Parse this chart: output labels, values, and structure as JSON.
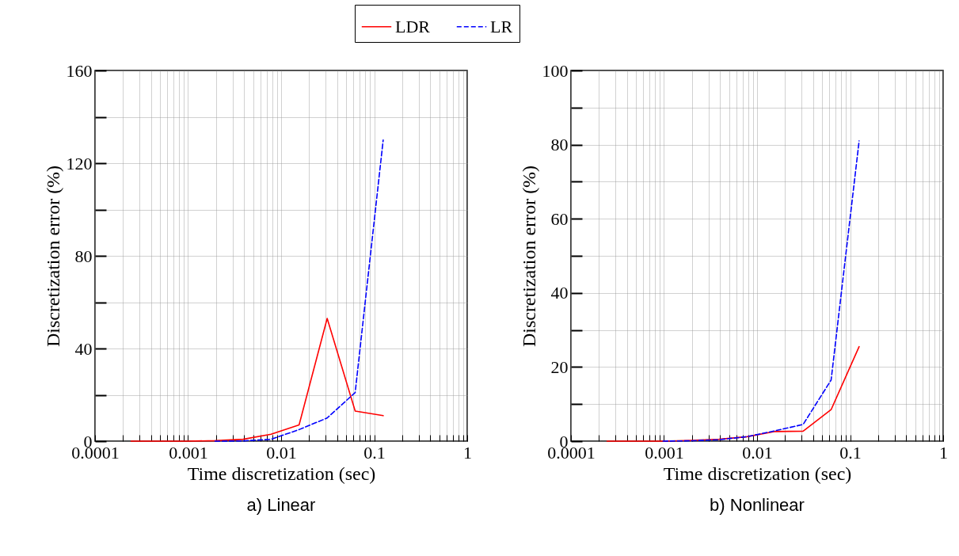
{
  "chart_data": [
    {
      "type": "line",
      "title": "a)  Linear",
      "xlabel": "Time discretization (sec)",
      "ylabel": "Discretization error (%)",
      "log": "x",
      "grid": true,
      "legend": "top",
      "xlim": [
        0.0001,
        1
      ],
      "xticks": [
        0.0001,
        {
          "value": 0.0002,
          "label": null
        },
        {
          "value": 0.0003,
          "label": null
        },
        {
          "value": 0.0004,
          "label": null
        },
        {
          "value": 0.0005,
          "label": null
        },
        {
          "value": 0.0006,
          "label": null
        },
        {
          "value": 0.0007,
          "label": null
        },
        {
          "value": 0.0008,
          "label": null
        },
        {
          "value": 0.0009,
          "label": null
        },
        0.001,
        {
          "value": 0.002,
          "label": null
        },
        {
          "value": 0.003,
          "label": null
        },
        {
          "value": 0.004,
          "label": null
        },
        {
          "value": 0.005,
          "label": null
        },
        {
          "value": 0.006,
          "label": null
        },
        {
          "value": 0.007,
          "label": null
        },
        {
          "value": 0.008,
          "label": null
        },
        {
          "value": 0.009,
          "label": null
        },
        0.01,
        {
          "value": 0.02,
          "label": null
        },
        {
          "value": 0.03,
          "label": null
        },
        {
          "value": 0.04,
          "label": null
        },
        {
          "value": 0.05,
          "label": null
        },
        {
          "value": 0.06,
          "label": null
        },
        {
          "value": 0.07,
          "label": null
        },
        {
          "value": 0.08,
          "label": null
        },
        {
          "value": 0.09,
          "label": null
        },
        0.1,
        {
          "value": 0.2,
          "label": null
        },
        {
          "value": 0.3,
          "label": null
        },
        {
          "value": 0.4,
          "label": null
        },
        {
          "value": 0.5,
          "label": null
        },
        {
          "value": 0.6,
          "label": null
        },
        {
          "value": 0.7,
          "label": null
        },
        {
          "value": 0.8,
          "label": null
        },
        {
          "value": 0.9,
          "label": null
        },
        1
      ],
      "ylim": [
        0,
        160
      ],
      "yticks": [
        0,
        {
          "value": 20,
          "label": null
        },
        40,
        {
          "value": 60,
          "label": null
        },
        80,
        {
          "value": 100,
          "label": null
        },
        120,
        {
          "value": 140,
          "label": null
        },
        160
      ],
      "x": [
        0.000244,
        0.000488,
        0.000977,
        0.00195,
        0.0039,
        0.0078,
        0.0156,
        0.03125,
        0.0625,
        0.125
      ],
      "series": [
        {
          "name": "LDR",
          "color": "#ff0000",
          "line_style": "solid",
          "values": [
            0,
            0,
            0,
            0.2,
            0.8,
            3,
            7,
            53,
            13,
            11
          ]
        },
        {
          "name": "LR",
          "color": "#0000ff",
          "line_style": "dashed",
          "values": [
            null,
            null,
            null,
            0,
            0.1,
            0.8,
            5,
            10,
            21,
            130
          ]
        }
      ]
    },
    {
      "type": "line",
      "title": "b)  Nonlinear",
      "xlabel": "Time discretization (sec)",
      "ylabel": "Discretization error (%)",
      "log": "x",
      "grid": true,
      "legend": "top",
      "xlim": [
        0.0001,
        1
      ],
      "xticks": [
        0.0001,
        {
          "value": 0.0002,
          "label": null
        },
        {
          "value": 0.0003,
          "label": null
        },
        {
          "value": 0.0004,
          "label": null
        },
        {
          "value": 0.0005,
          "label": null
        },
        {
          "value": 0.0006,
          "label": null
        },
        {
          "value": 0.0007,
          "label": null
        },
        {
          "value": 0.0008,
          "label": null
        },
        {
          "value": 0.0009,
          "label": null
        },
        0.001,
        {
          "value": 0.002,
          "label": null
        },
        {
          "value": 0.003,
          "label": null
        },
        {
          "value": 0.004,
          "label": null
        },
        {
          "value": 0.005,
          "label": null
        },
        {
          "value": 0.006,
          "label": null
        },
        {
          "value": 0.007,
          "label": null
        },
        {
          "value": 0.008,
          "label": null
        },
        {
          "value": 0.009,
          "label": null
        },
        0.01,
        {
          "value": 0.02,
          "label": null
        },
        {
          "value": 0.03,
          "label": null
        },
        {
          "value": 0.04,
          "label": null
        },
        {
          "value": 0.05,
          "label": null
        },
        {
          "value": 0.06,
          "label": null
        },
        {
          "value": 0.07,
          "label": null
        },
        {
          "value": 0.08,
          "label": null
        },
        {
          "value": 0.09,
          "label": null
        },
        0.1,
        {
          "value": 0.2,
          "label": null
        },
        {
          "value": 0.3,
          "label": null
        },
        {
          "value": 0.4,
          "label": null
        },
        {
          "value": 0.5,
          "label": null
        },
        {
          "value": 0.6,
          "label": null
        },
        {
          "value": 0.7,
          "label": null
        },
        {
          "value": 0.8,
          "label": null
        },
        {
          "value": 0.9,
          "label": null
        },
        1
      ],
      "ylim": [
        0,
        100
      ],
      "yticks": [
        0,
        {
          "value": 10,
          "label": null
        },
        20,
        {
          "value": 30,
          "label": null
        },
        40,
        {
          "value": 50,
          "label": null
        },
        60,
        {
          "value": 70,
          "label": null
        },
        80,
        {
          "value": 90,
          "label": null
        },
        100
      ],
      "x": [
        0.000244,
        0.000488,
        0.000977,
        0.00195,
        0.0039,
        0.0078,
        0.0156,
        0.03125,
        0.0625,
        0.125
      ],
      "series": [
        {
          "name": "LDR",
          "color": "#ff0000",
          "line_style": "solid",
          "values": [
            0,
            0,
            0,
            0.2,
            0.5,
            1.2,
            2.6,
            2.7,
            8.5,
            25.5
          ]
        },
        {
          "name": "LR",
          "color": "#0000ff",
          "line_style": "dashed",
          "values": [
            null,
            null,
            0,
            0.1,
            0.4,
            1.2,
            2.8,
            4.5,
            16.5,
            81
          ]
        }
      ]
    }
  ]
}
